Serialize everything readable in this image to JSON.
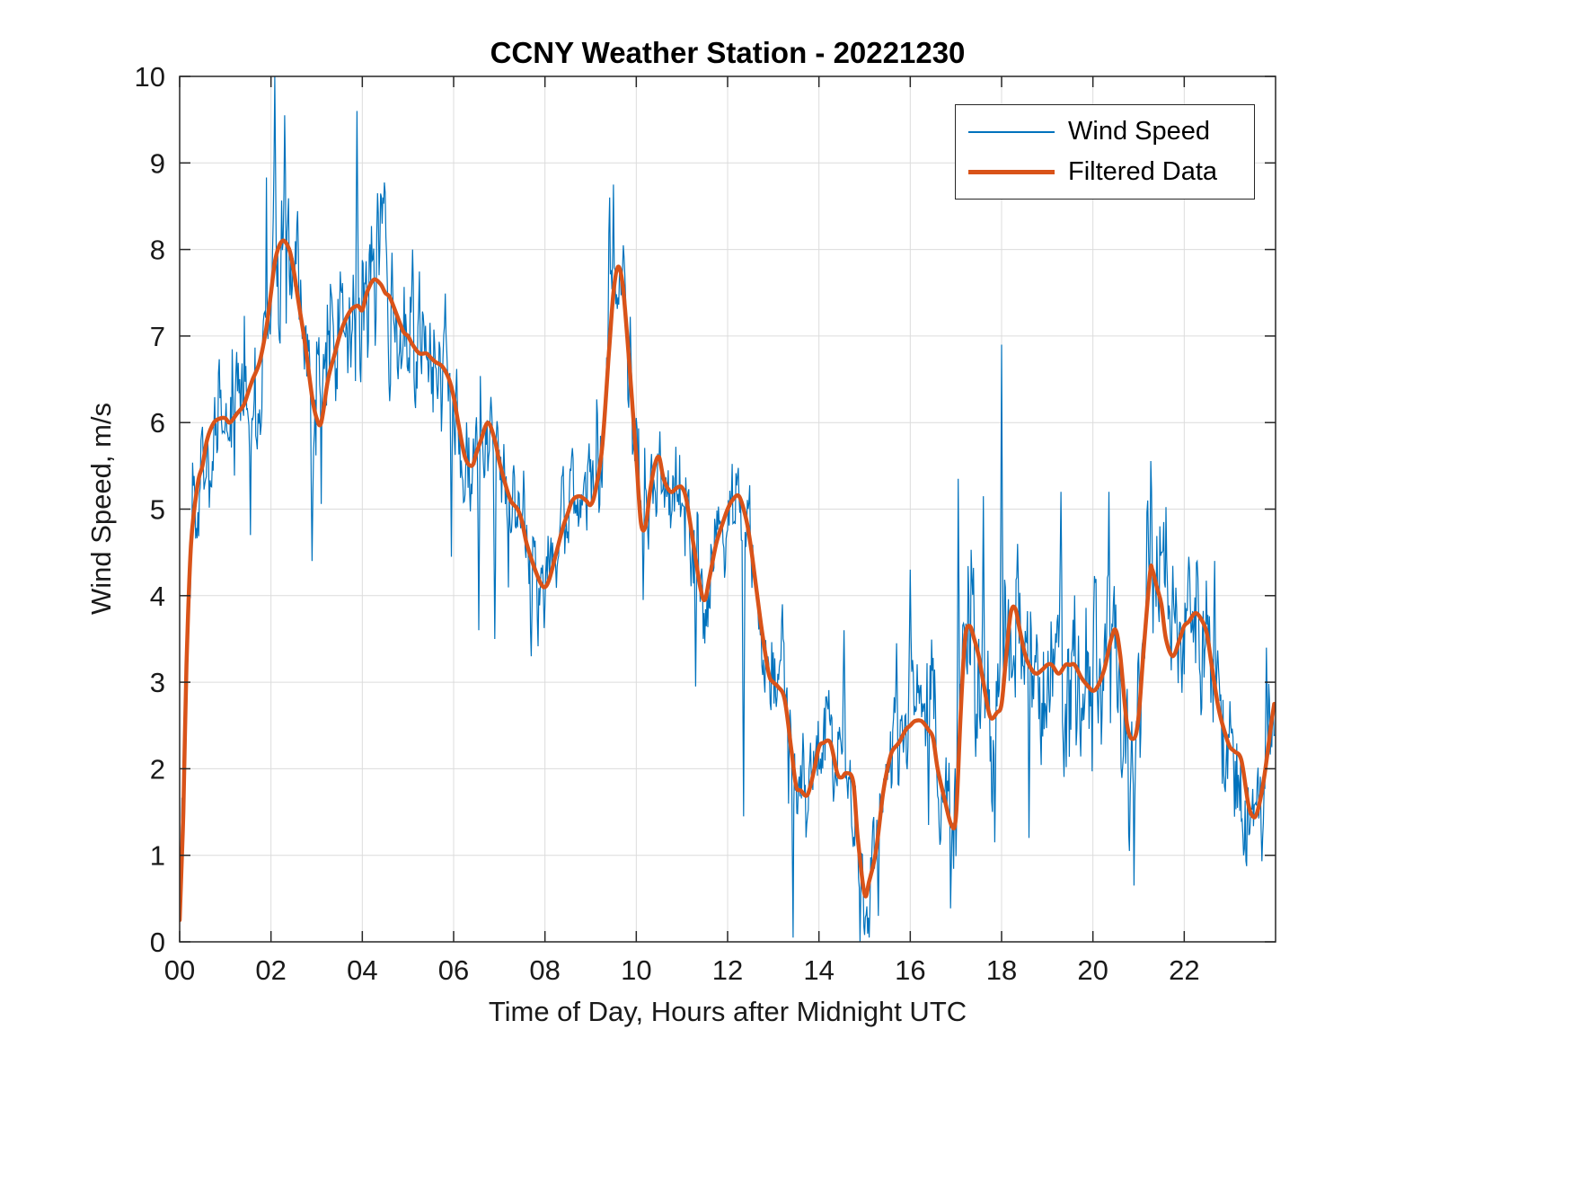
{
  "figure": {
    "background": "#ffffff"
  },
  "chart_data": {
    "type": "line",
    "title": "CCNY Weather Station - 20221230",
    "xlabel": "Time of Day, Hours after Midnight UTC",
    "ylabel": "Wind Speed, m/s",
    "xlim": [
      0,
      24
    ],
    "ylim": [
      0,
      10
    ],
    "xticks": [
      {
        "value": 0,
        "label": "00"
      },
      {
        "value": 2,
        "label": "02"
      },
      {
        "value": 4,
        "label": "04"
      },
      {
        "value": 6,
        "label": "06"
      },
      {
        "value": 8,
        "label": "08"
      },
      {
        "value": 10,
        "label": "10"
      },
      {
        "value": 12,
        "label": "12"
      },
      {
        "value": 14,
        "label": "14"
      },
      {
        "value": 16,
        "label": "16"
      },
      {
        "value": 18,
        "label": "18"
      },
      {
        "value": 20,
        "label": "20"
      },
      {
        "value": 22,
        "label": "22"
      }
    ],
    "yticks": [
      0,
      1,
      2,
      3,
      4,
      5,
      6,
      7,
      8,
      9,
      10
    ],
    "grid": true,
    "axis_color": "#262626",
    "grid_color": "#dcdcdc",
    "legend": {
      "position": "top-right"
    },
    "series": [
      {
        "name": "Wind Speed",
        "color": "#0072BD",
        "width": 1.2,
        "kind": "raw-noisy-measurements",
        "sample_interval_hours": 0.0167,
        "noise_envelope": [
          [
            0,
            0.7
          ],
          [
            1,
            0.7
          ],
          [
            2,
            0.85
          ],
          [
            3,
            0.8
          ],
          [
            4,
            0.8
          ],
          [
            5,
            0.75
          ],
          [
            6,
            0.6
          ],
          [
            7,
            0.6
          ],
          [
            8,
            0.55
          ],
          [
            9,
            0.65
          ],
          [
            10,
            0.7
          ],
          [
            11,
            0.6
          ],
          [
            12,
            0.55
          ],
          [
            13,
            0.6
          ],
          [
            14,
            0.6
          ],
          [
            15,
            0.55
          ],
          [
            16,
            0.6
          ],
          [
            17,
            0.9
          ],
          [
            18,
            1.05
          ],
          [
            19,
            0.85
          ],
          [
            20,
            0.9
          ],
          [
            21,
            1.0
          ],
          [
            22,
            0.85
          ],
          [
            23,
            0.7
          ],
          [
            24,
            0.7
          ]
        ],
        "extremes": [
          [
            1.55,
            4.7
          ],
          [
            2.08,
            10.0
          ],
          [
            2.3,
            9.55
          ],
          [
            2.9,
            4.4
          ],
          [
            3.88,
            9.6
          ],
          [
            4.33,
            8.65
          ],
          [
            4.45,
            8.6
          ],
          [
            5.1,
            8.0
          ],
          [
            5.95,
            4.45
          ],
          [
            6.55,
            3.6
          ],
          [
            6.9,
            3.5
          ],
          [
            7.7,
            3.3
          ],
          [
            9.42,
            8.6
          ],
          [
            9.5,
            8.75
          ],
          [
            10.15,
            3.95
          ],
          [
            11.3,
            2.95
          ],
          [
            12.35,
            1.45
          ],
          [
            13.2,
            3.9
          ],
          [
            13.43,
            0.05
          ],
          [
            14.55,
            3.6
          ],
          [
            14.9,
            0.0
          ],
          [
            15.1,
            0.05
          ],
          [
            15.3,
            0.3
          ],
          [
            15.7,
            3.45
          ],
          [
            16.0,
            4.3
          ],
          [
            16.4,
            1.35
          ],
          [
            17.05,
            5.35
          ],
          [
            17.6,
            5.15
          ],
          [
            17.85,
            1.15
          ],
          [
            18.0,
            6.9
          ],
          [
            18.6,
            1.2
          ],
          [
            19.3,
            5.2
          ],
          [
            20.35,
            5.2
          ],
          [
            20.8,
            1.05
          ],
          [
            20.9,
            0.65
          ],
          [
            21.2,
            5.1
          ],
          [
            21.55,
            4.85
          ],
          [
            22.1,
            4.45
          ],
          [
            22.3,
            4.2
          ],
          [
            23.3,
            1.0
          ],
          [
            23.8,
            3.4
          ]
        ]
      },
      {
        "name": "Filtered Data",
        "color": "#D95319",
        "width": 4.5,
        "points": [
          [
            0.0,
            0.25
          ],
          [
            0.08,
            1.5
          ],
          [
            0.15,
            3.2
          ],
          [
            0.25,
            4.6
          ],
          [
            0.4,
            5.3
          ],
          [
            0.5,
            5.5
          ],
          [
            0.6,
            5.8
          ],
          [
            0.75,
            6.0
          ],
          [
            0.9,
            6.05
          ],
          [
            1.0,
            6.05
          ],
          [
            1.1,
            6.0
          ],
          [
            1.25,
            6.1
          ],
          [
            1.4,
            6.2
          ],
          [
            1.5,
            6.35
          ],
          [
            1.6,
            6.5
          ],
          [
            1.75,
            6.7
          ],
          [
            1.9,
            7.1
          ],
          [
            2.0,
            7.5
          ],
          [
            2.1,
            7.9
          ],
          [
            2.25,
            8.1
          ],
          [
            2.4,
            8.0
          ],
          [
            2.5,
            7.75
          ],
          [
            2.6,
            7.4
          ],
          [
            2.75,
            6.9
          ],
          [
            2.9,
            6.3
          ],
          [
            3.0,
            6.05
          ],
          [
            3.1,
            6.0
          ],
          [
            3.25,
            6.5
          ],
          [
            3.4,
            6.8
          ],
          [
            3.5,
            7.0
          ],
          [
            3.6,
            7.15
          ],
          [
            3.75,
            7.3
          ],
          [
            3.9,
            7.35
          ],
          [
            4.0,
            7.3
          ],
          [
            4.1,
            7.5
          ],
          [
            4.25,
            7.65
          ],
          [
            4.4,
            7.6
          ],
          [
            4.5,
            7.5
          ],
          [
            4.6,
            7.45
          ],
          [
            4.75,
            7.25
          ],
          [
            4.9,
            7.05
          ],
          [
            5.0,
            7.0
          ],
          [
            5.1,
            6.9
          ],
          [
            5.25,
            6.8
          ],
          [
            5.4,
            6.8
          ],
          [
            5.5,
            6.75
          ],
          [
            5.6,
            6.7
          ],
          [
            5.75,
            6.65
          ],
          [
            5.9,
            6.5
          ],
          [
            6.0,
            6.3
          ],
          [
            6.1,
            6.0
          ],
          [
            6.25,
            5.6
          ],
          [
            6.4,
            5.5
          ],
          [
            6.5,
            5.65
          ],
          [
            6.6,
            5.8
          ],
          [
            6.75,
            6.0
          ],
          [
            6.9,
            5.8
          ],
          [
            7.0,
            5.55
          ],
          [
            7.1,
            5.35
          ],
          [
            7.25,
            5.1
          ],
          [
            7.4,
            5.0
          ],
          [
            7.5,
            4.85
          ],
          [
            7.6,
            4.6
          ],
          [
            7.75,
            4.35
          ],
          [
            7.9,
            4.15
          ],
          [
            8.0,
            4.1
          ],
          [
            8.1,
            4.2
          ],
          [
            8.25,
            4.5
          ],
          [
            8.4,
            4.8
          ],
          [
            8.5,
            4.95
          ],
          [
            8.6,
            5.1
          ],
          [
            8.75,
            5.15
          ],
          [
            8.9,
            5.1
          ],
          [
            9.0,
            5.05
          ],
          [
            9.1,
            5.2
          ],
          [
            9.25,
            5.7
          ],
          [
            9.4,
            6.8
          ],
          [
            9.5,
            7.5
          ],
          [
            9.6,
            7.8
          ],
          [
            9.7,
            7.6
          ],
          [
            9.8,
            7.0
          ],
          [
            9.9,
            6.3
          ],
          [
            10.0,
            5.6
          ],
          [
            10.1,
            4.85
          ],
          [
            10.2,
            4.8
          ],
          [
            10.3,
            5.2
          ],
          [
            10.4,
            5.5
          ],
          [
            10.5,
            5.6
          ],
          [
            10.6,
            5.35
          ],
          [
            10.75,
            5.2
          ],
          [
            10.9,
            5.25
          ],
          [
            11.0,
            5.25
          ],
          [
            11.1,
            5.1
          ],
          [
            11.25,
            4.6
          ],
          [
            11.4,
            4.1
          ],
          [
            11.5,
            3.95
          ],
          [
            11.6,
            4.2
          ],
          [
            11.75,
            4.6
          ],
          [
            11.9,
            4.85
          ],
          [
            12.0,
            5.0
          ],
          [
            12.1,
            5.1
          ],
          [
            12.25,
            5.15
          ],
          [
            12.4,
            4.9
          ],
          [
            12.5,
            4.6
          ],
          [
            12.6,
            4.2
          ],
          [
            12.75,
            3.6
          ],
          [
            12.9,
            3.1
          ],
          [
            13.0,
            3.0
          ],
          [
            13.1,
            2.95
          ],
          [
            13.25,
            2.8
          ],
          [
            13.4,
            2.2
          ],
          [
            13.5,
            1.8
          ],
          [
            13.6,
            1.75
          ],
          [
            13.75,
            1.7
          ],
          [
            13.9,
            2.0
          ],
          [
            14.0,
            2.25
          ],
          [
            14.1,
            2.3
          ],
          [
            14.25,
            2.3
          ],
          [
            14.4,
            1.95
          ],
          [
            14.5,
            1.9
          ],
          [
            14.6,
            1.95
          ],
          [
            14.75,
            1.85
          ],
          [
            14.85,
            1.2
          ],
          [
            15.0,
            0.55
          ],
          [
            15.1,
            0.7
          ],
          [
            15.25,
            1.05
          ],
          [
            15.4,
            1.7
          ],
          [
            15.5,
            2.0
          ],
          [
            15.6,
            2.2
          ],
          [
            15.75,
            2.3
          ],
          [
            15.9,
            2.45
          ],
          [
            16.0,
            2.5
          ],
          [
            16.1,
            2.55
          ],
          [
            16.25,
            2.55
          ],
          [
            16.4,
            2.45
          ],
          [
            16.5,
            2.35
          ],
          [
            16.6,
            2.0
          ],
          [
            16.75,
            1.65
          ],
          [
            16.9,
            1.35
          ],
          [
            17.0,
            1.45
          ],
          [
            17.1,
            2.6
          ],
          [
            17.2,
            3.5
          ],
          [
            17.3,
            3.65
          ],
          [
            17.4,
            3.5
          ],
          [
            17.5,
            3.3
          ],
          [
            17.6,
            3.0
          ],
          [
            17.75,
            2.6
          ],
          [
            17.9,
            2.65
          ],
          [
            18.0,
            2.75
          ],
          [
            18.1,
            3.3
          ],
          [
            18.2,
            3.8
          ],
          [
            18.3,
            3.85
          ],
          [
            18.4,
            3.6
          ],
          [
            18.5,
            3.35
          ],
          [
            18.6,
            3.2
          ],
          [
            18.75,
            3.1
          ],
          [
            18.9,
            3.15
          ],
          [
            19.0,
            3.2
          ],
          [
            19.1,
            3.2
          ],
          [
            19.25,
            3.1
          ],
          [
            19.4,
            3.2
          ],
          [
            19.5,
            3.2
          ],
          [
            19.6,
            3.2
          ],
          [
            19.75,
            3.05
          ],
          [
            19.9,
            2.95
          ],
          [
            20.0,
            2.9
          ],
          [
            20.1,
            2.95
          ],
          [
            20.25,
            3.15
          ],
          [
            20.4,
            3.5
          ],
          [
            20.5,
            3.6
          ],
          [
            20.6,
            3.3
          ],
          [
            20.75,
            2.5
          ],
          [
            20.9,
            2.35
          ],
          [
            21.0,
            2.6
          ],
          [
            21.1,
            3.3
          ],
          [
            21.25,
            4.25
          ],
          [
            21.3,
            4.3
          ],
          [
            21.4,
            4.1
          ],
          [
            21.5,
            3.9
          ],
          [
            21.6,
            3.5
          ],
          [
            21.75,
            3.3
          ],
          [
            21.9,
            3.5
          ],
          [
            22.0,
            3.65
          ],
          [
            22.1,
            3.7
          ],
          [
            22.25,
            3.8
          ],
          [
            22.4,
            3.7
          ],
          [
            22.5,
            3.55
          ],
          [
            22.6,
            3.2
          ],
          [
            22.75,
            2.7
          ],
          [
            22.9,
            2.4
          ],
          [
            23.0,
            2.25
          ],
          [
            23.1,
            2.2
          ],
          [
            23.25,
            2.1
          ],
          [
            23.4,
            1.6
          ],
          [
            23.5,
            1.45
          ],
          [
            23.6,
            1.5
          ],
          [
            23.75,
            1.9
          ],
          [
            23.9,
            2.5
          ],
          [
            23.97,
            2.75
          ]
        ]
      }
    ]
  }
}
